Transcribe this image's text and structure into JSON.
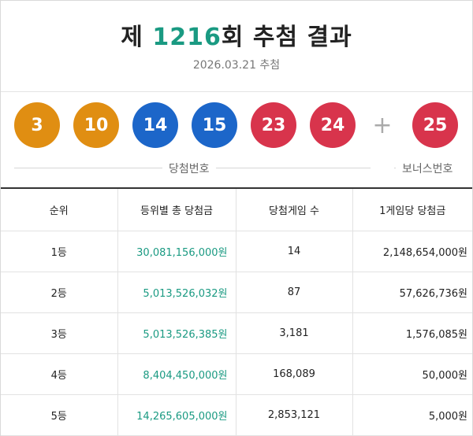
{
  "header": {
    "title_prefix": "제 ",
    "round": "1216",
    "title_suffix": "회 추첨 결과",
    "date": "2026.03.21 추첨"
  },
  "numbers": {
    "winning": [
      {
        "value": "3",
        "color": "#e08e12"
      },
      {
        "value": "10",
        "color": "#e08e12"
      },
      {
        "value": "14",
        "color": "#1c66c9"
      },
      {
        "value": "15",
        "color": "#1c66c9"
      },
      {
        "value": "23",
        "color": "#d8344c"
      },
      {
        "value": "24",
        "color": "#d8344c"
      }
    ],
    "plus": "+",
    "bonus": {
      "value": "25",
      "color": "#d8344c"
    },
    "winning_label": "당첨번호",
    "bonus_label": "보너스번호"
  },
  "table": {
    "headers": [
      "순위",
      "등위별 총 당첨금",
      "당첨게임 수",
      "1게임당 당첨금"
    ],
    "rows": [
      {
        "rank": "1등",
        "total": "30,081,156,000원",
        "games": "14",
        "per": "2,148,654,000원"
      },
      {
        "rank": "2등",
        "total": "5,013,526,032원",
        "games": "87",
        "per": "57,626,736원"
      },
      {
        "rank": "3등",
        "total": "5,013,526,385원",
        "games": "3,181",
        "per": "1,576,085원"
      },
      {
        "rank": "4등",
        "total": "8,404,450,000원",
        "games": "168,089",
        "per": "50,000원"
      },
      {
        "rank": "5등",
        "total": "14,265,605,000원",
        "games": "2,853,121",
        "per": "5,000원"
      }
    ]
  },
  "colors": {
    "accent": "#1a9a82"
  }
}
